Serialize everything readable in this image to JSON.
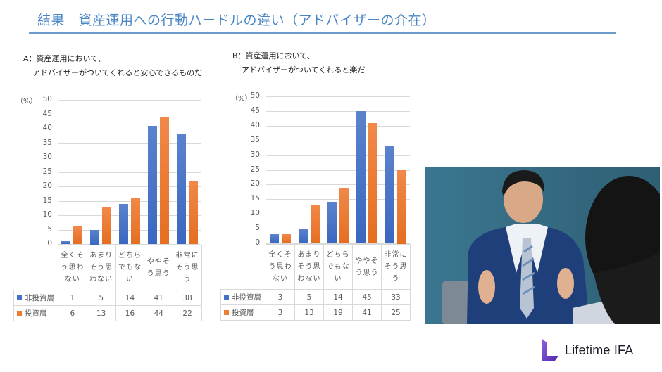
{
  "title": "結果　資産運用への行動ハードルの違い（アドバイザーの介在）",
  "colors": {
    "title": "#4a86c5",
    "rule": "#6a9bc9",
    "series_non_investor": "#4472c4",
    "series_investor": "#ed7d31"
  },
  "chartA": {
    "question_line1": "A：資産運用において、",
    "question_line2": "アドバイザーがついてくれると安心できるものだ",
    "unit": "（%）"
  },
  "chartB": {
    "question_line1": "B：資産運用において、",
    "question_line2": "アドバイザーがついてくれると楽だ",
    "unit": "（%）"
  },
  "legend": {
    "non_investor": "非投資層",
    "investor": "投資層"
  },
  "logo": {
    "text": "Lifetime IFA"
  },
  "photo": {
    "description": "business advisor in pinstripe suit gesturing to client"
  },
  "chart_data": [
    {
      "type": "bar",
      "title": "A：資産運用において、アドバイザーがついてくれると安心できるものだ",
      "xlabel": "",
      "ylabel": "（%）",
      "ylim": [
        0,
        50
      ],
      "yticks": [
        0,
        5,
        10,
        15,
        20,
        25,
        30,
        35,
        40,
        45,
        50
      ],
      "grid": true,
      "legend_position": "data-table",
      "categories": [
        "全くそう思わない",
        "あまりそう思わない",
        "どちらでもない",
        "ややそう思う",
        "非常にそう思う"
      ],
      "category_lines": [
        [
          "全くそ",
          "う思わ",
          "ない"
        ],
        [
          "あまり",
          "そう思",
          "わない"
        ],
        [
          "どちら",
          "でもな",
          "い"
        ],
        [
          "ややそ",
          "う思う"
        ],
        [
          "非常に",
          "そう思",
          "う"
        ]
      ],
      "series": [
        {
          "name": "非投資層",
          "color": "#4472c4",
          "values": [
            1,
            5,
            14,
            41,
            38
          ]
        },
        {
          "name": "投資層",
          "color": "#ed7d31",
          "values": [
            6,
            13,
            16,
            44,
            22
          ]
        }
      ]
    },
    {
      "type": "bar",
      "title": "B：資産運用において、アドバイザーがついてくれると楽だ",
      "xlabel": "",
      "ylabel": "（%）",
      "ylim": [
        0,
        50
      ],
      "yticks": [
        0,
        5,
        10,
        15,
        20,
        25,
        30,
        35,
        40,
        45,
        50
      ],
      "grid": true,
      "legend_position": "data-table",
      "categories": [
        "全くそう思わない",
        "あまりそう思わない",
        "どちらでもない",
        "ややそう思う",
        "非常にそう思う"
      ],
      "category_lines": [
        [
          "全くそ",
          "う思わ",
          "ない"
        ],
        [
          "あまり",
          "そう思",
          "わない"
        ],
        [
          "どちら",
          "でもな",
          "い"
        ],
        [
          "ややそ",
          "う思う"
        ],
        [
          "非常に",
          "そう思",
          "う"
        ]
      ],
      "series": [
        {
          "name": "非投資層",
          "color": "#4472c4",
          "values": [
            3,
            5,
            14,
            45,
            33
          ]
        },
        {
          "name": "投資層",
          "color": "#ed7d31",
          "values": [
            3,
            13,
            19,
            41,
            25
          ]
        }
      ]
    }
  ]
}
